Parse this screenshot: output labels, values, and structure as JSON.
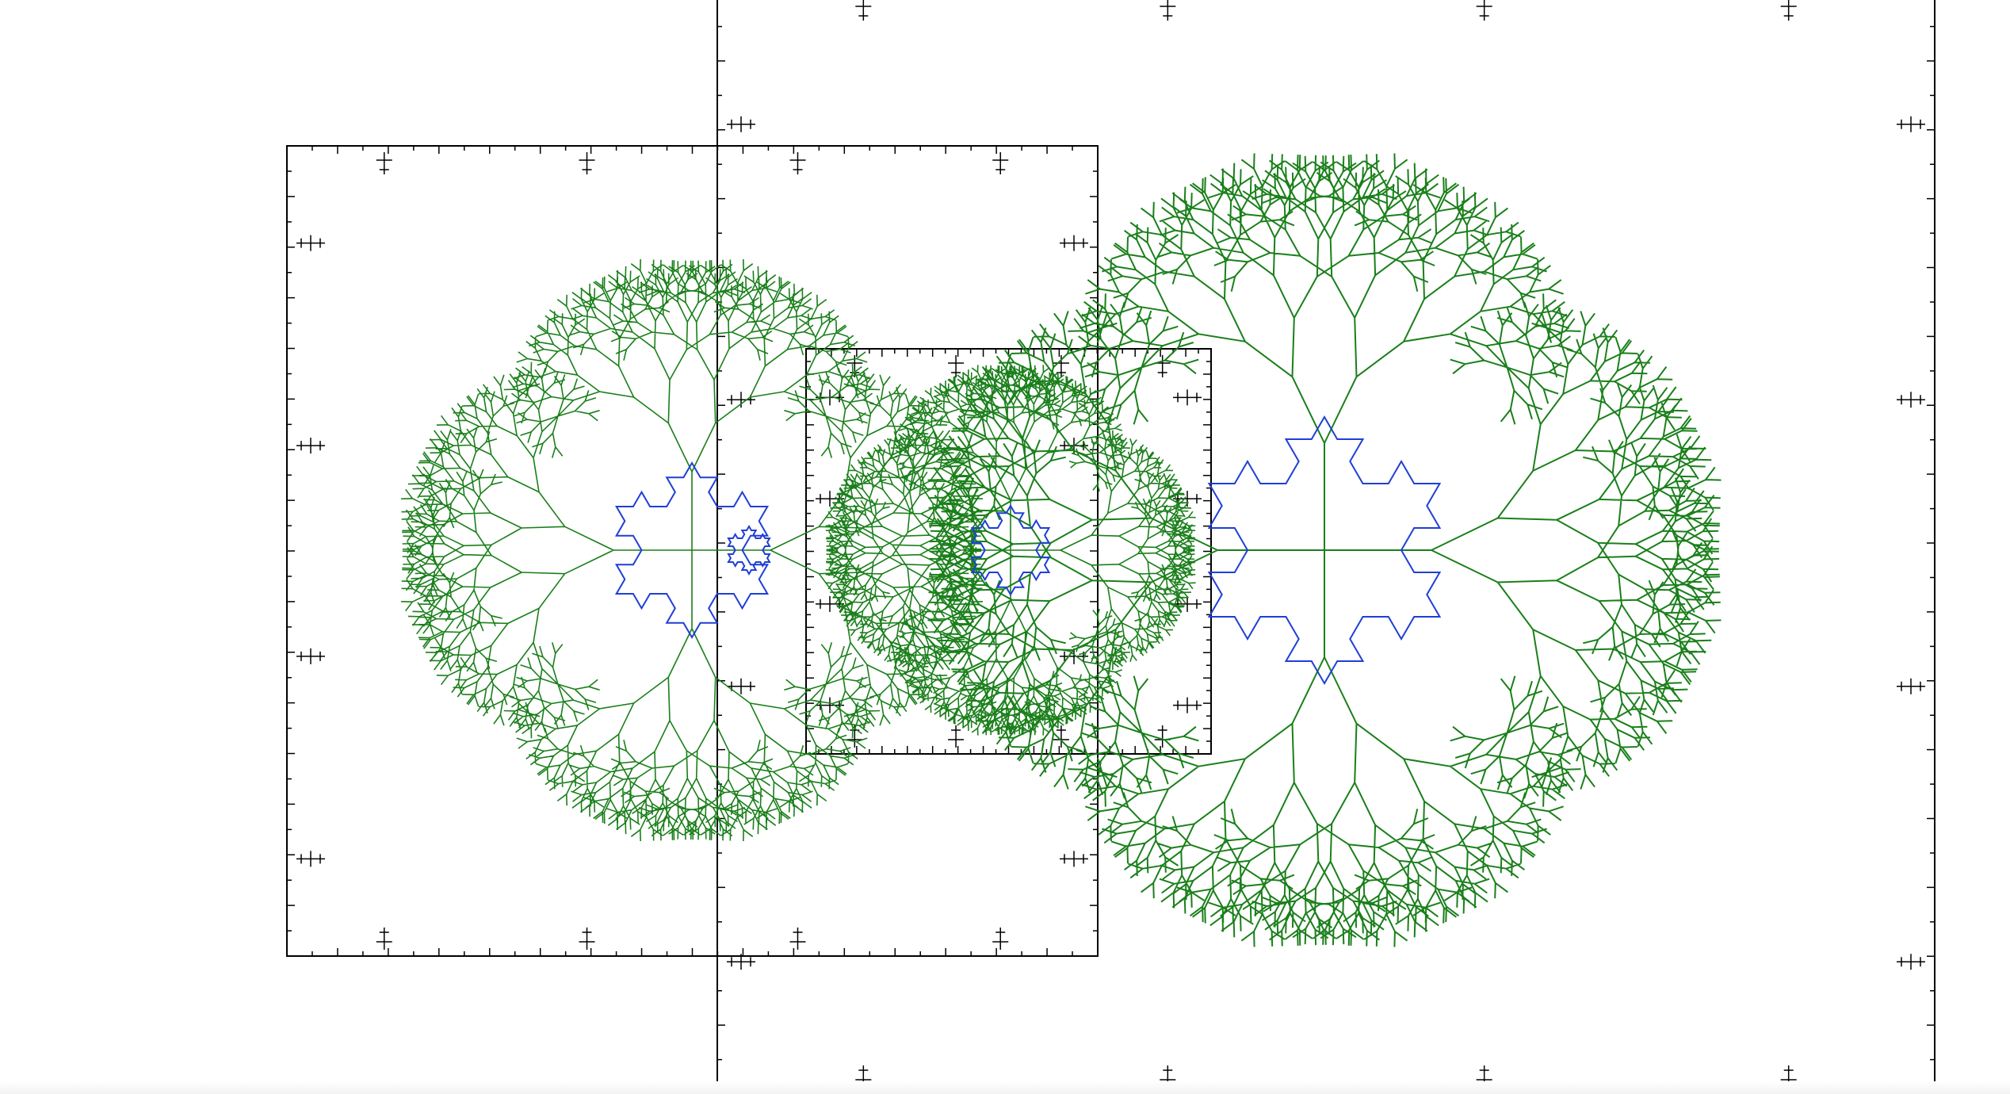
{
  "colors": {
    "background": "#ffffff",
    "tree": "#1a7f1a",
    "snowflake": "#1f3fd6",
    "frame": "#000000",
    "ticks": "#000000"
  },
  "figure": {
    "kind": "recursive-fractal-drawing",
    "elements": [
      "nested-frames",
      "fractal-trees",
      "koch-snowflakes",
      "tick-crosses"
    ]
  }
}
